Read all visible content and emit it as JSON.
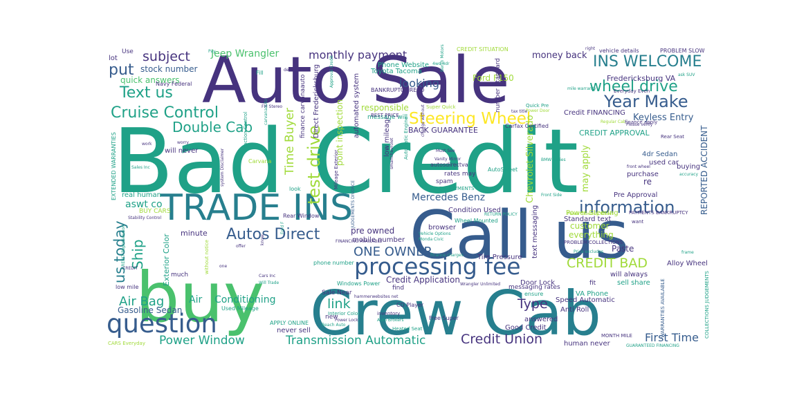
{
  "palette": {
    "purple": "#440154",
    "indigo": "#46337e",
    "blue": "#365c8d",
    "steel": "#277f8e",
    "teal": "#1fa187",
    "green": "#4ac16d",
    "lime": "#a0da39",
    "yellow": "#fde725"
  },
  "words": [
    {
      "text": "Bad Credit",
      "color": "teal"
    },
    {
      "text": "buy",
      "color": "green"
    },
    {
      "text": "Crew Cab",
      "color": "steel"
    },
    {
      "text": "Auto Sale",
      "color": "indigo"
    },
    {
      "text": "Call us",
      "color": "blue"
    },
    {
      "text": "TRADE INS",
      "color": "steel"
    },
    {
      "text": "processing fee",
      "color": "blue"
    },
    {
      "text": "question",
      "color": "blue"
    },
    {
      "text": "Steering Wheel",
      "color": "yellow"
    },
    {
      "text": "Year Make",
      "color": "blue"
    },
    {
      "text": "information",
      "color": "blue"
    },
    {
      "text": "test drive",
      "color": "lime"
    },
    {
      "text": "INS WELCOME",
      "color": "steel"
    },
    {
      "text": "wheel drive",
      "color": "teal"
    },
    {
      "text": "Cruise Control",
      "color": "teal"
    },
    {
      "text": "Double Cab",
      "color": "teal"
    },
    {
      "text": "Autos Direct",
      "color": "blue"
    },
    {
      "text": "us today",
      "color": "steel"
    },
    {
      "text": "Ship",
      "color": "teal"
    },
    {
      "text": "Text us",
      "color": "teal"
    },
    {
      "text": "put",
      "color": "blue"
    },
    {
      "text": "subject",
      "color": "indigo"
    },
    {
      "text": "monthly payment",
      "color": "indigo"
    },
    {
      "text": "Jeep Wrangler",
      "color": "green"
    },
    {
      "text": "ONE OWNER",
      "color": "blue"
    },
    {
      "text": "CREDIT BAD",
      "color": "lime"
    },
    {
      "text": "Credit Union",
      "color": "indigo"
    },
    {
      "text": "Power Window",
      "color": "teal"
    },
    {
      "text": "Transmission Automatic",
      "color": "teal"
    },
    {
      "text": "Air Bag",
      "color": "teal"
    },
    {
      "text": "link",
      "color": "teal"
    },
    {
      "text": "Type",
      "color": "indigo"
    },
    {
      "text": "First Time",
      "color": "blue"
    },
    {
      "text": "Time Buyer",
      "color": "lime"
    },
    {
      "text": "looking",
      "color": "blue"
    },
    {
      "text": "Mercedes Benz",
      "color": "blue"
    },
    {
      "text": "Keyless Entry",
      "color": "blue"
    },
    {
      "text": "Conditioning",
      "color": "teal"
    },
    {
      "text": "Air",
      "color": "teal"
    },
    {
      "text": "Gasoline Sedan",
      "color": "blue"
    },
    {
      "text": "Credit Application",
      "color": "indigo"
    },
    {
      "text": "stock number",
      "color": "blue"
    },
    {
      "text": "quick answers",
      "color": "green"
    },
    {
      "text": "money back",
      "color": "indigo"
    },
    {
      "text": "Fredericksburg VA",
      "color": "indigo"
    },
    {
      "text": "Phone Website",
      "color": "teal"
    },
    {
      "text": "Toyota Tacoma",
      "color": "teal"
    },
    {
      "text": "Ford F150",
      "color": "lime"
    },
    {
      "text": "Standard text",
      "color": "indigo"
    },
    {
      "text": "customer",
      "color": "lime"
    },
    {
      "text": "everything",
      "color": "lime"
    },
    {
      "text": "Paste",
      "color": "indigo"
    },
    {
      "text": "Alloy Wheel",
      "color": "indigo"
    },
    {
      "text": "Power Steering",
      "color": "lime"
    },
    {
      "text": "Pre Approval",
      "color": "indigo"
    },
    {
      "text": "responsible",
      "color": "lime"
    },
    {
      "text": "BACK GUARANTEE",
      "color": "indigo"
    },
    {
      "text": "CREDIT APPROVAL",
      "color": "teal"
    },
    {
      "text": "Credit FINANCING",
      "color": "indigo"
    },
    {
      "text": "Chevrolet Silverado",
      "color": "lime"
    },
    {
      "text": "may apply",
      "color": "lime"
    },
    {
      "text": "REPORTED ACCIDENT",
      "color": "blue"
    },
    {
      "text": "4dr Sedan",
      "color": "blue"
    },
    {
      "text": "used car",
      "color": "indigo"
    },
    {
      "text": "purchase",
      "color": "indigo"
    },
    {
      "text": "re",
      "color": "indigo"
    },
    {
      "text": "buying",
      "color": "indigo"
    },
    {
      "text": "aswt co",
      "color": "teal"
    },
    {
      "text": "real human",
      "color": "teal"
    },
    {
      "text": "BUY CARS",
      "color": "lime"
    },
    {
      "text": "minute",
      "color": "indigo"
    },
    {
      "text": "Exterior Color",
      "color": "teal"
    },
    {
      "text": "pre owned",
      "color": "indigo"
    },
    {
      "text": "mobile number",
      "color": "indigo"
    },
    {
      "text": "browser",
      "color": "indigo"
    },
    {
      "text": "Condition Used",
      "color": "indigo"
    },
    {
      "text": "text messaging",
      "color": "indigo"
    },
    {
      "text": "answered",
      "color": "indigo"
    },
    {
      "text": "Good Credit",
      "color": "indigo"
    },
    {
      "text": "human never",
      "color": "indigo"
    },
    {
      "text": "Door Lock",
      "color": "indigo"
    },
    {
      "text": "Speed Automatic",
      "color": "indigo"
    },
    {
      "text": "VA Phone",
      "color": "teal"
    },
    {
      "text": "Anti Roll",
      "color": "indigo"
    },
    {
      "text": "will always",
      "color": "indigo"
    },
    {
      "text": "sell share",
      "color": "teal"
    },
    {
      "text": "Used Mileage",
      "color": "teal"
    },
    {
      "text": "APPLY ONLINE",
      "color": "teal"
    },
    {
      "text": "never sell",
      "color": "indigo"
    },
    {
      "text": "Sale Near",
      "color": "indigo"
    },
    {
      "text": "Windows Power",
      "color": "teal"
    },
    {
      "text": "phone number",
      "color": "teal"
    },
    {
      "text": "CD Player",
      "color": "indigo"
    },
    {
      "text": "Free Super",
      "color": "indigo"
    },
    {
      "text": "spam",
      "color": "indigo"
    },
    {
      "text": "rates may",
      "color": "indigo"
    },
    {
      "text": "low mileage",
      "color": "indigo"
    },
    {
      "text": "finance carvanaauto",
      "color": "indigo"
    },
    {
      "text": "point inspection",
      "color": "lime"
    },
    {
      "text": "automated system",
      "color": "indigo"
    },
    {
      "text": "message will",
      "color": "teal"
    },
    {
      "text": "Direct Fredericksburg",
      "color": "indigo"
    },
    {
      "text": "Tire Pressure",
      "color": "indigo"
    },
    {
      "text": "Wheel Mounted",
      "color": "teal"
    },
    {
      "text": "lot",
      "color": "indigo"
    },
    {
      "text": "Use",
      "color": "indigo"
    },
    {
      "text": "Fill",
      "color": "teal"
    },
    {
      "text": "Navy Federal",
      "color": "indigo"
    },
    {
      "text": "will never",
      "color": "indigo"
    },
    {
      "text": "look",
      "color": "teal"
    },
    {
      "text": "much",
      "color": "indigo"
    },
    {
      "text": "fit",
      "color": "indigo"
    },
    {
      "text": "ensure",
      "color": "teal"
    },
    {
      "text": "vehicle details",
      "color": "indigo"
    },
    {
      "text": "PROBLEM SLOW",
      "color": "indigo"
    },
    {
      "text": "CREDIT SITUATION",
      "color": "lime"
    },
    {
      "text": "BANKRUPTCY REPO",
      "color": "indigo"
    },
    {
      "text": "Carfax Certified",
      "color": "indigo"
    },
    {
      "text": "EXTENDED WARRANTIES",
      "color": "teal"
    },
    {
      "text": "PROBLEM COLLECTIONS",
      "color": "indigo"
    },
    {
      "text": "MONTH MILE",
      "color": "indigo"
    },
    {
      "text": "COLLECTIONS JUDGEMENTS",
      "color": "teal"
    },
    {
      "text": "WARRANTIES AVAILABLE",
      "color": "blue"
    },
    {
      "text": "GUARANTEED FINANCING",
      "color": "teal"
    },
    {
      "text": "CARS Everyday",
      "color": "lime"
    },
    {
      "text": "Super Quick",
      "color": "lime"
    },
    {
      "text": "Quick Pre",
      "color": "teal"
    },
    {
      "text": "Must See",
      "color": "indigo"
    },
    {
      "text": "Vanity Mirror",
      "color": "indigo"
    },
    {
      "text": "autosdirectva",
      "color": "indigo"
    },
    {
      "text": "AutoSweet",
      "color": "teal"
    },
    {
      "text": "SLOW PAYMENTS",
      "color": "teal"
    },
    {
      "text": "PAYMENTS BANKRUPTCY",
      "color": "indigo"
    },
    {
      "text": "BEST PRICE",
      "color": "indigo"
    },
    {
      "text": "Monda Civic",
      "color": "teal"
    },
    {
      "text": "Vehicle Options",
      "color": "teal"
    },
    {
      "text": "Rear Window",
      "color": "indigo"
    },
    {
      "text": "Stability Control",
      "color": "indigo"
    },
    {
      "text": "Sales Inc",
      "color": "teal"
    },
    {
      "text": "Carvana",
      "color": "lime"
    },
    {
      "text": "Traction Control",
      "color": "teal"
    },
    {
      "text": "system Disclaimer",
      "color": "indigo"
    },
    {
      "text": "JUDGEMENTS DIVORCE",
      "color": "blue"
    },
    {
      "text": "Heated Seat",
      "color": "teal"
    },
    {
      "text": "Interior Color",
      "color": "teal"
    },
    {
      "text": "inventory",
      "color": "indigo"
    },
    {
      "text": "Power Lock",
      "color": "indigo"
    },
    {
      "text": "Beach Auto",
      "color": "teal"
    },
    {
      "text": "Regular Cab",
      "color": "lime"
    },
    {
      "text": "finance apply",
      "color": "indigo"
    },
    {
      "text": "Rear Seat",
      "color": "indigo"
    },
    {
      "text": "Everyday Even",
      "color": "indigo"
    },
    {
      "text": "Please verify",
      "color": "indigo"
    },
    {
      "text": "front wheel",
      "color": "indigo"
    },
    {
      "text": "Front Side",
      "color": "teal"
    },
    {
      "text": "Price excludes",
      "color": "teal"
    },
    {
      "text": "want",
      "color": "indigo"
    },
    {
      "text": "Power Door",
      "color": "lime"
    },
    {
      "text": "tax title",
      "color": "indigo"
    },
    {
      "text": "low mile",
      "color": "indigo"
    },
    {
      "text": "Cars Inc",
      "color": "indigo"
    },
    {
      "text": "Will Trade",
      "color": "teal"
    },
    {
      "text": "without notice",
      "color": "lime"
    },
    {
      "text": "offer",
      "color": "indigo"
    },
    {
      "text": "know",
      "color": "indigo"
    },
    {
      "text": "Ford F",
      "color": "teal"
    },
    {
      "text": "FM Stereo",
      "color": "indigo"
    },
    {
      "text": "work",
      "color": "indigo"
    },
    {
      "text": "worry",
      "color": "indigo"
    },
    {
      "text": "one",
      "color": "indigo"
    },
    {
      "text": "carvanaauto",
      "color": "teal"
    },
    {
      "text": "FINANCING AVAILABLE",
      "color": "indigo"
    },
    {
      "text": "RETURN POLICY",
      "color": "teal"
    },
    {
      "text": "Auto Brokers",
      "color": "teal"
    },
    {
      "text": "Wrangler Unlimited",
      "color": "indigo"
    },
    {
      "text": "finance charges",
      "color": "teal"
    },
    {
      "text": "messaging rates",
      "color": "indigo"
    },
    {
      "text": "number Standard",
      "color": "indigo"
    },
    {
      "text": "find",
      "color": "indigo"
    },
    {
      "text": "new",
      "color": "indigo"
    },
    {
      "text": "Power Steering Wheel",
      "color": "lime"
    },
    {
      "text": "smartchevrolet",
      "color": "indigo"
    },
    {
      "text": "Mileage Exterior",
      "color": "indigo"
    },
    {
      "text": "change without",
      "color": "indigo"
    },
    {
      "text": "Approval Credit",
      "color": "teal"
    },
    {
      "text": "decision",
      "color": "indigo"
    },
    {
      "text": "Pay",
      "color": "teal"
    },
    {
      "text": "right",
      "color": "indigo"
    },
    {
      "text": "4wd 4dr",
      "color": "teal"
    },
    {
      "text": "Berlin Motors",
      "color": "teal"
    },
    {
      "text": "Automatic Engine",
      "color": "teal"
    },
    {
      "text": "BMW Series",
      "color": "teal"
    },
    {
      "text": "mile warranty",
      "color": "teal"
    },
    {
      "text": "ask SUV",
      "color": "teal"
    },
    {
      "text": "accuracy",
      "color": "teal"
    },
    {
      "text": "frame",
      "color": "teal"
    },
    {
      "text": "CREDIT Repossession",
      "color": "teal"
    },
    {
      "text": "hammerwebsites net",
      "color": "indigo"
    },
    {
      "text": "CREDIT",
      "color": "indigo"
    }
  ]
}
